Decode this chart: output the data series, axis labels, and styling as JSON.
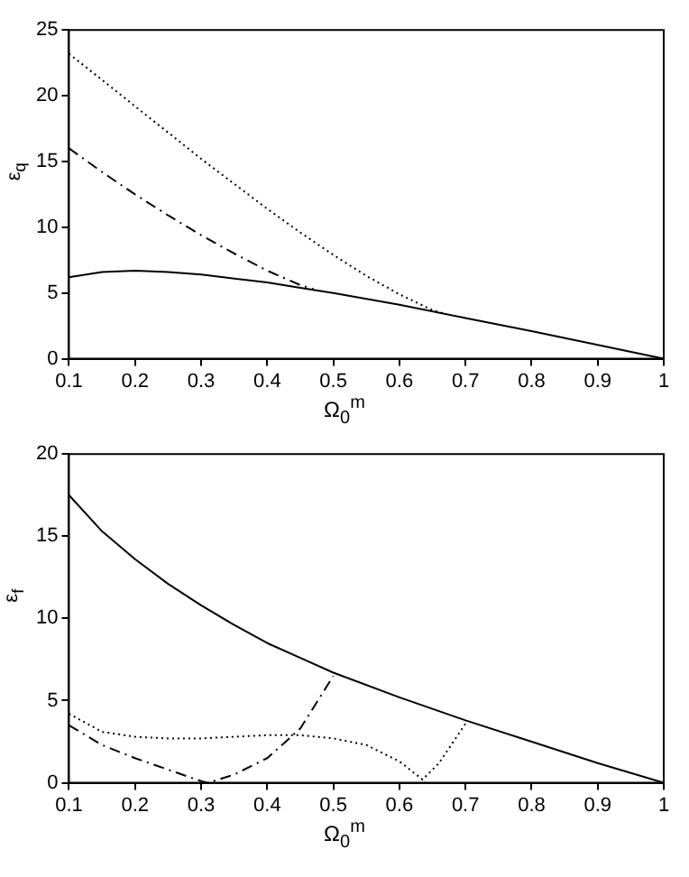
{
  "chart_data": [
    {
      "type": "line",
      "xlabel": "Ω$_{0}$$^{m}$",
      "ylabel": "ε$_{q}$",
      "xlim": [
        0.1,
        1
      ],
      "xticks": [
        0.1,
        0.2,
        0.3,
        0.4,
        0.5,
        0.6,
        0.7,
        0.8,
        0.9,
        1
      ],
      "ylim": [
        0,
        25
      ],
      "yticks": [
        0,
        5,
        10,
        15,
        20,
        25
      ],
      "grid": false,
      "legend": false,
      "marker": "none",
      "series": [
        {
          "color": "#000000",
          "line_style": "solid",
          "x": [
            0.1,
            0.15,
            0.2,
            0.25,
            0.3,
            0.35,
            0.4,
            0.45,
            0.5,
            0.6,
            0.7,
            0.8,
            0.9,
            1
          ],
          "values": [
            6.2,
            6.6,
            6.7,
            6.6,
            6.4,
            6.1,
            5.8,
            5.4,
            5.0,
            4.1,
            3.1,
            2.1,
            1.05,
            0
          ]
        },
        {
          "color": "#000000",
          "line_style": "dashdot",
          "x": [
            0.1,
            0.15,
            0.2,
            0.25,
            0.3,
            0.35,
            0.4,
            0.45,
            0.47
          ],
          "values": [
            16,
            14.2,
            12.5,
            10.9,
            9.4,
            8.0,
            6.7,
            5.6,
            5.3
          ]
        },
        {
          "color": "#000000",
          "line_style": "dotted",
          "x": [
            0.1,
            0.15,
            0.2,
            0.25,
            0.3,
            0.35,
            0.4,
            0.45,
            0.5,
            0.55,
            0.6,
            0.65,
            0.67
          ],
          "values": [
            23.2,
            21.2,
            19.2,
            17.2,
            15.2,
            13.3,
            11.4,
            9.6,
            7.9,
            6.3,
            4.9,
            3.7,
            3.4
          ]
        }
      ]
    },
    {
      "type": "line",
      "xlabel": "Ω$_{0}$$^{m}$",
      "ylabel": "ε$_{f}$",
      "xlim": [
        0.1,
        1
      ],
      "xticks": [
        0.1,
        0.2,
        0.3,
        0.4,
        0.5,
        0.6,
        0.7,
        0.8,
        0.9,
        1
      ],
      "ylim": [
        0,
        20
      ],
      "yticks": [
        0,
        5,
        10,
        15,
        20
      ],
      "grid": false,
      "legend": false,
      "marker": "none",
      "series": [
        {
          "color": "#000000",
          "line_style": "solid",
          "x": [
            0.1,
            0.15,
            0.2,
            0.25,
            0.3,
            0.35,
            0.4,
            0.45,
            0.5,
            0.6,
            0.7,
            0.8,
            0.9,
            1
          ],
          "values": [
            17.5,
            15.3,
            13.6,
            12.1,
            10.8,
            9.6,
            8.5,
            7.6,
            6.7,
            5.2,
            3.8,
            2.5,
            1.2,
            0
          ]
        },
        {
          "color": "#000000",
          "line_style": "dashdot",
          "x": [
            0.1,
            0.15,
            0.2,
            0.25,
            0.3,
            0.31,
            0.35,
            0.4,
            0.45,
            0.5
          ],
          "values": [
            3.5,
            2.3,
            1.5,
            0.8,
            0.1,
            0,
            0.5,
            1.5,
            3.3,
            6.5
          ]
        },
        {
          "color": "#000000",
          "line_style": "dotted",
          "x": [
            0.1,
            0.15,
            0.2,
            0.25,
            0.3,
            0.35,
            0.4,
            0.45,
            0.5,
            0.55,
            0.6,
            0.635,
            0.66,
            0.7
          ],
          "values": [
            4.2,
            3.1,
            2.8,
            2.7,
            2.7,
            2.8,
            2.9,
            2.9,
            2.7,
            2.3,
            1.3,
            0.2,
            1.2,
            3.6
          ]
        }
      ]
    }
  ]
}
